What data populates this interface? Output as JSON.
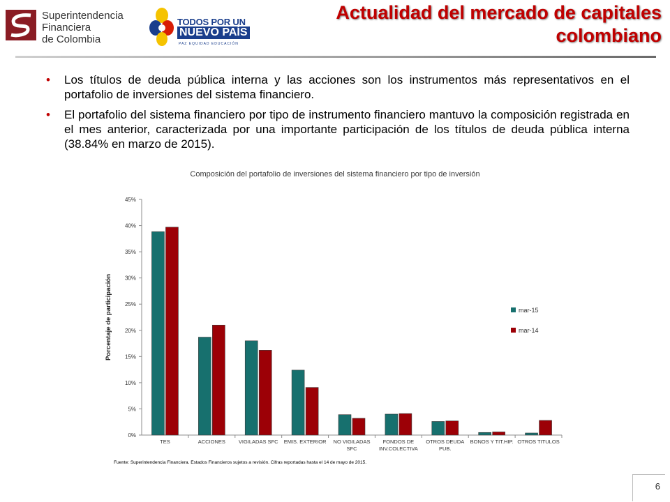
{
  "header": {
    "org_logo_lines": [
      "Superintendencia",
      "Financiera",
      "de Colombia"
    ],
    "gov_logo_line1": "TODOS POR UN",
    "gov_logo_line2": "NUEVO PAÍS",
    "gov_logo_line3": "PAZ  EQUIDAD  EDUCACIÓN",
    "title": "Actualidad del mercado de capitales colombiano"
  },
  "bullets": [
    "Los títulos de deuda pública interna y las acciones son los instrumentos más representativos en el portafolio de inversiones del sistema financiero.",
    "El portafolio del sistema financiero por tipo de instrumento financiero mantuvo la composición registrada en el mes anterior, caracterizada por una importante participación de los títulos de deuda pública interna (38.84% en marzo de 2015)."
  ],
  "chart_data": {
    "type": "bar",
    "title": "Composición del portafolio de inversiones del sistema financiero por tipo de inversión",
    "ylabel": "Porcentaje de participación",
    "xlabel": "",
    "ylim": [
      0,
      45
    ],
    "yticks": [
      "0%",
      "5%",
      "10%",
      "15%",
      "20%",
      "25%",
      "30%",
      "35%",
      "40%",
      "45%"
    ],
    "categories": [
      [
        "TES"
      ],
      [
        "ACCIONES"
      ],
      [
        "VIGILADAS SFC"
      ],
      [
        "EMIS. EXTERIOR"
      ],
      [
        "NO VIGILADAS",
        "SFC"
      ],
      [
        "FONDOS DE",
        "INV.COLECTIVA"
      ],
      [
        "OTROS DEUDA",
        "PUB."
      ],
      [
        "BONOS Y TIT.HIP."
      ],
      [
        "OTROS TITULOS"
      ]
    ],
    "series": [
      {
        "name": "mar-15",
        "color": "#17706e",
        "values": [
          38.84,
          18.7,
          18.0,
          12.4,
          3.9,
          4.0,
          2.6,
          0.5,
          0.4
        ]
      },
      {
        "name": "mar-14",
        "color": "#9c0006",
        "values": [
          39.7,
          21.0,
          16.2,
          9.1,
          3.2,
          4.1,
          2.7,
          0.6,
          2.8
        ]
      }
    ],
    "legend_position": "right",
    "grid": false
  },
  "source_note": "Fuente: Superintendencia  Financiera. Estados Financieros sujetos a revisión. Cifras reportadas  hasta el 14 de mayo de 2015.",
  "page_number": "6"
}
